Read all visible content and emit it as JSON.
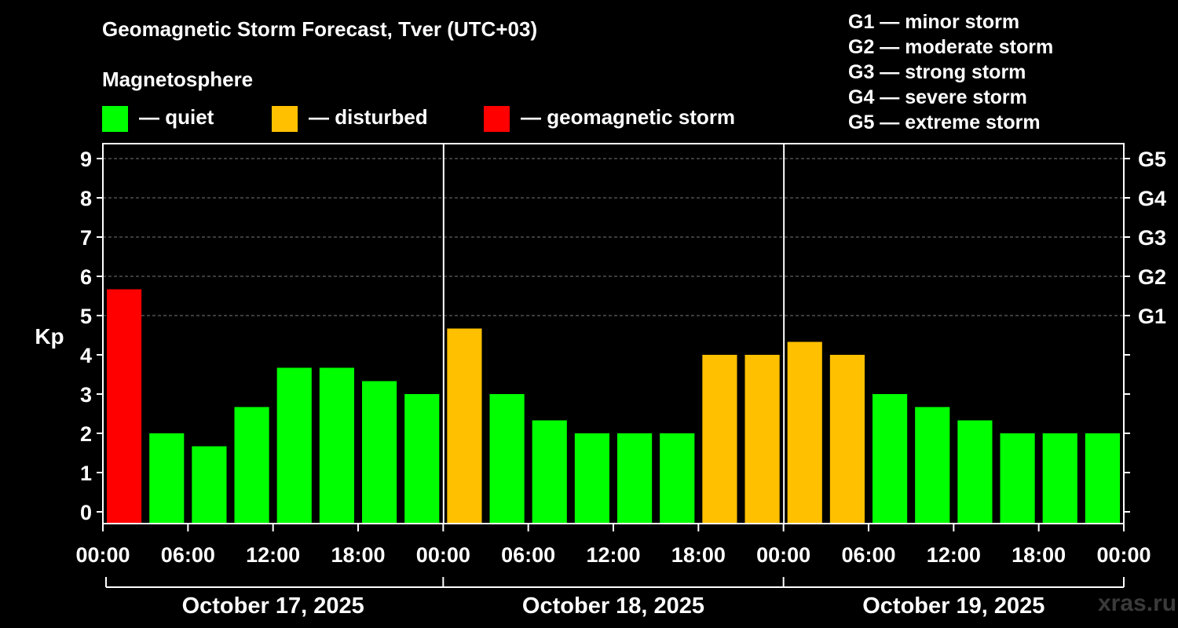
{
  "title": "Geomagnetic Storm Forecast, Tver (UTC+03)",
  "legend": {
    "heading": "Magnetosphere",
    "items": [
      {
        "label": "— quiet",
        "color": "#00ff00"
      },
      {
        "label": "— disturbed",
        "color": "#ffc000"
      },
      {
        "label": "— geomagnetic storm",
        "color": "#ff0000"
      }
    ]
  },
  "g_scale": [
    "G1 — minor storm",
    "G2 — moderate storm",
    "G3 — strong storm",
    "G4 — severe storm",
    "G5 — extreme storm"
  ],
  "brand": "xras.ru",
  "chart_data": {
    "type": "bar",
    "ylabel": "Kp",
    "ylim": [
      0,
      9
    ],
    "y_ticks": [
      0,
      1,
      2,
      3,
      4,
      5,
      6,
      7,
      8,
      9
    ],
    "right_axis_labels": [
      {
        "kp": 5,
        "label": "G1"
      },
      {
        "kp": 6,
        "label": "G2"
      },
      {
        "kp": 7,
        "label": "G3"
      },
      {
        "kp": 8,
        "label": "G4"
      },
      {
        "kp": 9,
        "label": "G5"
      }
    ],
    "x_tick_labels": [
      "00:00",
      "06:00",
      "12:00",
      "18:00",
      "00:00",
      "06:00",
      "12:00",
      "18:00",
      "00:00",
      "06:00",
      "12:00",
      "18:00",
      "00:00"
    ],
    "days": [
      "October 17, 2025",
      "October 18, 2025",
      "October 19, 2025"
    ],
    "grid": true,
    "interval_hours": 3,
    "values": [
      5.67,
      2.0,
      1.67,
      2.67,
      3.67,
      3.67,
      3.33,
      3.0,
      4.67,
      3.0,
      2.33,
      2.0,
      2.0,
      2.0,
      4.0,
      4.0,
      4.33,
      4.0,
      3.0,
      2.67,
      2.33,
      2.0,
      2.0,
      2.0
    ],
    "levels": [
      "storm",
      "quiet",
      "quiet",
      "quiet",
      "quiet",
      "quiet",
      "quiet",
      "quiet",
      "disturbed",
      "quiet",
      "quiet",
      "quiet",
      "quiet",
      "quiet",
      "disturbed",
      "disturbed",
      "disturbed",
      "disturbed",
      "quiet",
      "quiet",
      "quiet",
      "quiet",
      "quiet",
      "quiet"
    ],
    "level_colors": {
      "quiet": "#00ff00",
      "disturbed": "#ffc000",
      "storm": "#ff0000"
    }
  }
}
